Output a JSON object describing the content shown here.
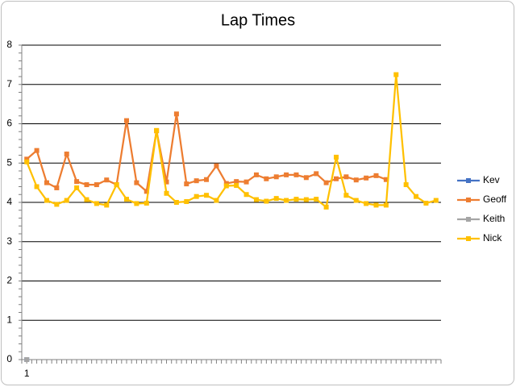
{
  "chart_data": {
    "type": "line",
    "title": "Lap Times",
    "categories": [
      "1",
      null,
      null,
      null,
      null,
      null,
      null,
      null,
      null,
      null,
      null,
      null,
      null,
      null,
      null,
      null,
      null,
      null,
      null,
      null,
      null,
      null,
      null,
      null,
      null,
      null,
      null,
      null,
      null,
      null,
      null,
      null,
      null,
      null,
      null,
      null,
      null,
      null,
      null,
      null,
      null,
      null
    ],
    "series": [
      {
        "name": "Kev",
        "color": "#4472c4",
        "values": [
          0,
          null,
          null,
          null,
          null,
          null,
          null,
          null,
          null,
          null,
          null,
          null,
          null,
          null,
          null,
          null,
          null,
          null,
          null,
          null,
          null,
          null,
          null,
          null,
          null,
          null,
          null,
          null,
          null,
          null,
          null,
          null,
          null,
          null,
          null,
          null,
          null,
          null,
          null,
          null,
          null,
          null
        ]
      },
      {
        "name": "Geoff",
        "color": "#ed7d31",
        "values": [
          5.1,
          5.32,
          4.5,
          4.37,
          5.23,
          4.53,
          4.45,
          4.45,
          4.57,
          4.45,
          6.08,
          4.5,
          4.28,
          5.82,
          4.52,
          6.25,
          4.47,
          4.55,
          4.58,
          4.93,
          4.48,
          4.53,
          4.52,
          4.7,
          4.6,
          4.65,
          4.7,
          4.7,
          4.63,
          4.73,
          4.5,
          4.6,
          4.65,
          4.57,
          4.62,
          4.68,
          4.58,
          null,
          null,
          null,
          null,
          null
        ]
      },
      {
        "name": "Keith",
        "color": "#a5a5a5",
        "values": [
          0,
          null,
          null,
          null,
          null,
          null,
          null,
          null,
          null,
          null,
          null,
          null,
          null,
          null,
          null,
          null,
          null,
          null,
          null,
          null,
          null,
          null,
          null,
          null,
          null,
          null,
          null,
          null,
          null,
          null,
          null,
          null,
          null,
          null,
          null,
          null,
          null,
          null,
          null,
          null,
          null,
          null
        ]
      },
      {
        "name": "Nick",
        "color": "#ffc000",
        "values": [
          5.03,
          4.4,
          4.05,
          3.95,
          4.05,
          4.37,
          4.07,
          3.97,
          3.93,
          4.45,
          4.08,
          3.97,
          3.98,
          5.83,
          4.23,
          4.0,
          4.02,
          4.15,
          4.18,
          4.05,
          4.42,
          4.43,
          4.2,
          4.07,
          4.03,
          4.1,
          4.05,
          4.08,
          4.07,
          4.08,
          3.88,
          5.15,
          4.18,
          4.05,
          3.97,
          3.93,
          3.93,
          7.25,
          4.45,
          4.15,
          3.98,
          4.05
        ]
      }
    ],
    "ylim": [
      0,
      8
    ],
    "yticks": [
      0,
      1,
      2,
      3,
      4,
      5,
      6,
      7,
      8
    ],
    "grid": true,
    "legend": "right"
  }
}
